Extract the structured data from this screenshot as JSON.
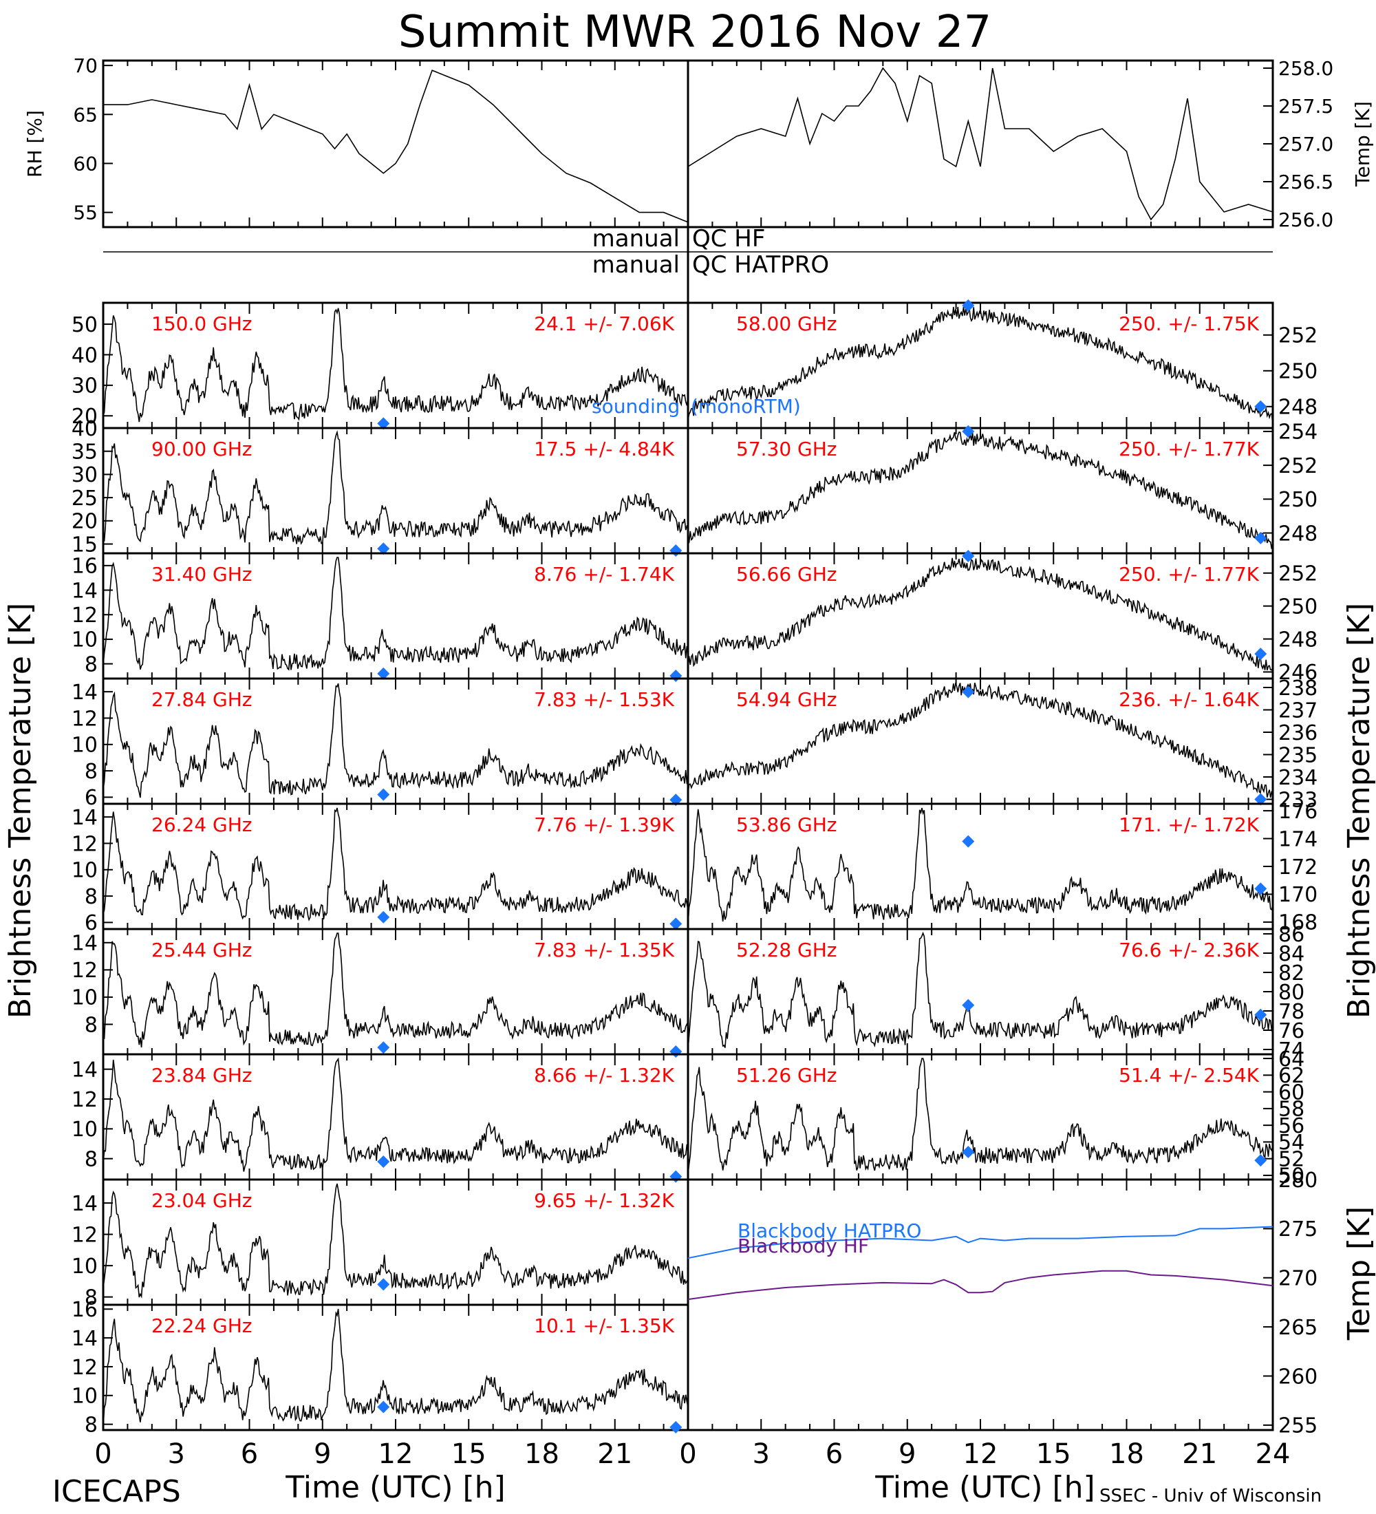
{
  "figure": {
    "title": "Summit MWR 2016 Nov 27",
    "left_ylabel": "Brightness Temperature [K]",
    "right_ylabel": "Brightness Temperature [K]",
    "xlabel_left": "Time (UTC) [h]",
    "xlabel_right": "Time (UTC) [h]",
    "footer_left": "ICECAPS",
    "footer_right": "SSEC - Univ of Wisconsin",
    "qc_hf_prefix": "manual",
    "qc_hf_label": "QC HF",
    "qc_hatpro_prefix": "manual",
    "qc_hatpro_label": "QC HATPRO",
    "sounding_label_a": "sounding",
    "sounding_label_b": "(monoRTM)",
    "colors": {
      "trace": "#000000",
      "annotation": "#ff0000",
      "sounding": "#1a75ff",
      "bb_hatpro": "#1a75ff",
      "bb_hf": "#6a1a8a"
    },
    "x_ticks": [
      "0",
      "3",
      "6",
      "9",
      "12",
      "15",
      "18",
      "21"
    ],
    "x_ticks_right": [
      "0",
      "3",
      "6",
      "9",
      "12",
      "15",
      "18",
      "21",
      "24"
    ]
  },
  "chart_data": [
    {
      "type": "line",
      "id": "rh",
      "ylabel": "RH [%]",
      "ylim": [
        53.5,
        70.5
      ],
      "yticks": [
        "55",
        "60",
        "65",
        "70"
      ],
      "xlim": [
        0,
        24
      ],
      "x": [
        0,
        1,
        2,
        3,
        4,
        5,
        5.5,
        6,
        6.5,
        7,
        8,
        9,
        9.5,
        10,
        10.5,
        11,
        11.5,
        12,
        12.5,
        13,
        13.5,
        14,
        15,
        16,
        17,
        18,
        19,
        20,
        21,
        22,
        23,
        24
      ],
      "y": [
        66,
        66,
        66.5,
        66,
        65.5,
        65,
        63.5,
        68,
        63.5,
        65,
        64,
        63,
        61.5,
        63,
        61,
        60,
        59,
        60,
        62,
        66,
        69.5,
        69,
        68,
        66,
        63.5,
        61,
        59,
        58,
        56.5,
        55,
        55,
        54
      ]
    },
    {
      "type": "line",
      "id": "temp",
      "ylabel": "Temp [K]",
      "ylim": [
        255.9,
        258.1
      ],
      "yticks": [
        "256.0",
        "256.5",
        "257.0",
        "257.5",
        "258.0"
      ],
      "xlim": [
        0,
        24
      ],
      "x": [
        0,
        1,
        2,
        3,
        4,
        4.5,
        5,
        5.5,
        6,
        6.5,
        7,
        7.5,
        8,
        8.5,
        9,
        9.5,
        10,
        10.5,
        11,
        11.5,
        12,
        12.5,
        13,
        14,
        15,
        16,
        17,
        18,
        18.5,
        19,
        19.5,
        20,
        20.5,
        21,
        22,
        23,
        24
      ],
      "y": [
        256.7,
        256.9,
        257.1,
        257.2,
        257.1,
        257.6,
        257.0,
        257.4,
        257.3,
        257.5,
        257.5,
        257.7,
        258.0,
        257.8,
        257.3,
        257.9,
        257.8,
        256.8,
        256.7,
        257.3,
        256.7,
        258.0,
        257.2,
        257.2,
        256.9,
        257.1,
        257.2,
        256.9,
        256.3,
        256.0,
        256.2,
        256.8,
        257.6,
        256.5,
        256.1,
        256.2,
        256.1
      ]
    },
    {
      "type": "line",
      "id": "ch150",
      "channel": "150.0 GHz",
      "stats": "24.1 +/- 7.06K",
      "side": "left",
      "row": 0,
      "ylim": [
        16,
        57
      ],
      "yticks": [
        "20",
        "30",
        "40",
        "50"
      ],
      "xlim": [
        0,
        24
      ],
      "sounding": [
        [
          11.5,
          17.5
        ]
      ]
    },
    {
      "type": "line",
      "id": "ch90",
      "channel": "90.00 GHz",
      "stats": "17.5 +/- 4.84K",
      "side": "left",
      "row": 1,
      "ylim": [
        13,
        40
      ],
      "yticks": [
        "15",
        "20",
        "25",
        "30",
        "35",
        "40"
      ],
      "xlim": [
        0,
        24
      ],
      "sounding": [
        [
          11.5,
          14
        ],
        [
          23.5,
          13.5
        ]
      ]
    },
    {
      "type": "line",
      "id": "ch3140",
      "channel": "31.40 GHz",
      "stats": "8.76 +/- 1.74K",
      "side": "left",
      "row": 2,
      "ylim": [
        6.8,
        17
      ],
      "yticks": [
        "8",
        "10",
        "12",
        "14",
        "16"
      ],
      "xlim": [
        0,
        24
      ],
      "sounding": [
        [
          11.5,
          7.2
        ],
        [
          23.5,
          7.0
        ]
      ]
    },
    {
      "type": "line",
      "id": "ch2784",
      "channel": "27.84 GHz",
      "stats": "7.83 +/- 1.53K",
      "side": "left",
      "row": 3,
      "ylim": [
        5.5,
        15
      ],
      "yticks": [
        "6",
        "8",
        "10",
        "12",
        "14"
      ],
      "xlim": [
        0,
        24
      ],
      "sounding": [
        [
          11.5,
          6.2
        ],
        [
          23.5,
          5.8
        ]
      ]
    },
    {
      "type": "line",
      "id": "ch2624",
      "channel": "26.24 GHz",
      "stats": "7.76 +/- 1.39K",
      "side": "left",
      "row": 4,
      "ylim": [
        5.5,
        15
      ],
      "yticks": [
        "6",
        "8",
        "10",
        "12",
        "14"
      ],
      "xlim": [
        0,
        24
      ],
      "sounding": [
        [
          11.5,
          6.4
        ],
        [
          23.5,
          5.9
        ]
      ]
    },
    {
      "type": "line",
      "id": "ch2544",
      "channel": "25.44 GHz",
      "stats": "7.83 +/- 1.35K",
      "side": "left",
      "row": 5,
      "ylim": [
        5.8,
        15
      ],
      "yticks": [
        "8",
        "10",
        "12",
        "14"
      ],
      "xlim": [
        0,
        24
      ],
      "sounding": [
        [
          11.5,
          6.3
        ],
        [
          23.5,
          5.9
        ]
      ]
    },
    {
      "type": "line",
      "id": "ch2384",
      "channel": "23.84 GHz",
      "stats": "8.66 +/- 1.32K",
      "side": "left",
      "row": 6,
      "ylim": [
        6.6,
        15
      ],
      "yticks": [
        "8",
        "10",
        "12",
        "14"
      ],
      "xlim": [
        0,
        24
      ],
      "sounding": [
        [
          11.5,
          7.8
        ],
        [
          23.5,
          6.8
        ]
      ]
    },
    {
      "type": "line",
      "id": "ch2304",
      "channel": "23.04 GHz",
      "stats": "9.65 +/- 1.32K",
      "side": "left",
      "row": 7,
      "ylim": [
        7.5,
        15.5
      ],
      "yticks": [
        "8",
        "10",
        "12",
        "14"
      ],
      "xlim": [
        0,
        24
      ],
      "sounding": [
        [
          11.5,
          8.8
        ]
      ]
    },
    {
      "type": "line",
      "id": "ch2224",
      "channel": "22.24 GHz",
      "stats": "10.1 +/- 1.35K",
      "side": "left",
      "row": 8,
      "ylim": [
        7.6,
        16.3
      ],
      "yticks": [
        "8",
        "10",
        "12",
        "14",
        "16"
      ],
      "xlim": [
        0,
        24
      ],
      "sounding": [
        [
          11.5,
          9.2
        ],
        [
          23.5,
          7.8
        ]
      ]
    },
    {
      "type": "line",
      "id": "ch5800",
      "channel": "58.00 GHz",
      "stats": "250. +/- 1.75K",
      "side": "right",
      "row": 0,
      "ylim": [
        246.8,
        253.8
      ],
      "yticks": [
        "248",
        "250",
        "252"
      ],
      "xlim": [
        0,
        24
      ],
      "sounding": [
        [
          11.5,
          254
        ],
        [
          23.5,
          248
        ]
      ]
    },
    {
      "type": "line",
      "id": "ch5730",
      "channel": "57.30 GHz",
      "stats": "250. +/- 1.77K",
      "side": "right",
      "row": 1,
      "ylim": [
        246.8,
        254.2
      ],
      "yticks": [
        "248",
        "250",
        "252",
        "254"
      ],
      "xlim": [
        0,
        24
      ],
      "sounding": [
        [
          11.5,
          254
        ],
        [
          23.5,
          247.7
        ]
      ]
    },
    {
      "type": "line",
      "id": "ch5666",
      "channel": "56.66 GHz",
      "stats": "250. +/- 1.77K",
      "side": "right",
      "row": 2,
      "ylim": [
        245.6,
        253.2
      ],
      "yticks": [
        "246",
        "248",
        "250",
        "252"
      ],
      "xlim": [
        0,
        24
      ],
      "sounding": [
        [
          11.5,
          253.1
        ],
        [
          23.5,
          247.1
        ]
      ]
    },
    {
      "type": "line",
      "id": "ch5484",
      "channel": "54.94 GHz",
      "stats": "236. +/- 1.64K",
      "side": "right",
      "row": 3,
      "ylim": [
        232.8,
        238.4
      ],
      "yticks": [
        "233",
        "234",
        "235",
        "236",
        "237",
        "238"
      ],
      "xlim": [
        0,
        24
      ],
      "sounding": [
        [
          11.5,
          237.8
        ],
        [
          23.5,
          233
        ]
      ]
    },
    {
      "type": "line",
      "id": "ch5386",
      "channel": "53.86 GHz",
      "stats": "171. +/- 1.72K",
      "side": "right",
      "row": 4,
      "ylim": [
        167.5,
        176.5
      ],
      "yticks": [
        "168",
        "170",
        "172",
        "174",
        "176"
      ],
      "xlim": [
        0,
        24
      ],
      "sounding": [
        [
          11.5,
          173.8
        ],
        [
          23.5,
          170.4
        ]
      ]
    },
    {
      "type": "line",
      "id": "ch5228",
      "channel": "52.28 GHz",
      "stats": "76.6 +/- 2.36K",
      "side": "right",
      "row": 5,
      "ylim": [
        73.5,
        86.5
      ],
      "yticks": [
        "74",
        "76",
        "78",
        "80",
        "82",
        "84",
        "86"
      ],
      "xlim": [
        0,
        24
      ],
      "sounding": [
        [
          11.5,
          78.6
        ],
        [
          23.5,
          77.6
        ]
      ]
    },
    {
      "type": "line",
      "id": "ch5126",
      "channel": "51.26 GHz",
      "stats": "51.4 +/- 2.54K",
      "side": "right",
      "row": 6,
      "ylim": [
        49.5,
        64.5
      ],
      "yticks": [
        "50",
        "52",
        "54",
        "56",
        "58",
        "60",
        "62",
        "64"
      ],
      "xlim": [
        0,
        24
      ],
      "sounding": [
        [
          11.5,
          52.8
        ],
        [
          23.5,
          51.8
        ]
      ]
    },
    {
      "type": "line",
      "id": "blackbody",
      "ylabel": "Temp [K]",
      "ylim": [
        254.5,
        280
      ],
      "yticks": [
        "255",
        "260",
        "265",
        "270",
        "275",
        "280"
      ],
      "xlim": [
        0,
        24
      ],
      "series": [
        {
          "name": "Blackbody HATPRO",
          "x": [
            0,
            2,
            4,
            6,
            8,
            10,
            11,
            11.5,
            12,
            13,
            14,
            16,
            18,
            20,
            21,
            22,
            24
          ],
          "y": [
            272,
            273,
            273.5,
            273.8,
            274,
            273.8,
            274.2,
            273.6,
            274,
            273.8,
            274,
            274,
            274.2,
            274.3,
            275,
            275,
            275.2
          ]
        },
        {
          "name": "Blackbody HF",
          "x": [
            0,
            2,
            4,
            6,
            8,
            10,
            10.5,
            11,
            11.5,
            12,
            12.5,
            13,
            14,
            15,
            16,
            17,
            18,
            19,
            20,
            22,
            24
          ],
          "y": [
            267.8,
            268.5,
            269,
            269.3,
            269.5,
            269.4,
            269.8,
            269.3,
            268.5,
            268.5,
            268.6,
            269.5,
            270,
            270.3,
            270.5,
            270.7,
            270.7,
            270.3,
            270.2,
            269.8,
            269.2
          ]
        }
      ]
    }
  ]
}
